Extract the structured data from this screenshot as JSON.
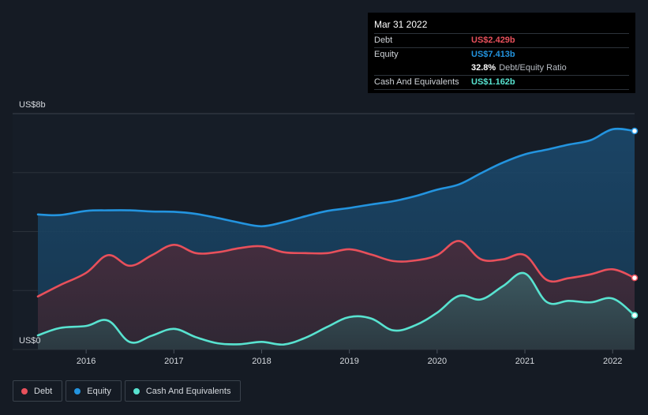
{
  "tooltip": {
    "date": "Mar 31 2022",
    "rows": [
      {
        "label": "Debt",
        "value": "US$2.429b",
        "color": "#e8505b"
      },
      {
        "label": "Equity",
        "value": "US$7.413b",
        "color": "#2394df"
      },
      {
        "label": "",
        "value": "32.8%",
        "suffix": "Debt/Equity Ratio",
        "color": "#ffffff"
      },
      {
        "label": "Cash And Equivalents",
        "value": "US$1.162b",
        "color": "#58e3d0"
      }
    ]
  },
  "chart_data": {
    "type": "area",
    "ylabel_top": "US$8b",
    "ylabel_bottom": "US$0",
    "ylim": [
      0,
      8
    ],
    "xlim": [
      2015.45,
      2022.25
    ],
    "grid": true,
    "x_ticks": [
      "2016",
      "2017",
      "2018",
      "2019",
      "2020",
      "2021",
      "2022"
    ],
    "x": [
      2015.45,
      2015.7,
      2016.0,
      2016.25,
      2016.5,
      2016.75,
      2017.0,
      2017.25,
      2017.5,
      2017.75,
      2018.0,
      2018.25,
      2018.5,
      2018.75,
      2019.0,
      2019.25,
      2019.5,
      2019.75,
      2020.0,
      2020.25,
      2020.5,
      2020.75,
      2021.0,
      2021.25,
      2021.5,
      2021.75,
      2022.0,
      2022.25
    ],
    "series": [
      {
        "name": "Equity",
        "color": "#2394df",
        "values": [
          4.58,
          4.56,
          4.7,
          4.72,
          4.72,
          4.68,
          4.67,
          4.6,
          4.46,
          4.3,
          4.18,
          4.32,
          4.52,
          4.7,
          4.8,
          4.92,
          5.03,
          5.2,
          5.42,
          5.6,
          5.98,
          6.34,
          6.62,
          6.78,
          6.95,
          7.1,
          7.47,
          7.41
        ]
      },
      {
        "name": "Debt",
        "color": "#e8505b",
        "values": [
          1.8,
          2.18,
          2.6,
          3.2,
          2.84,
          3.2,
          3.55,
          3.27,
          3.3,
          3.44,
          3.5,
          3.3,
          3.27,
          3.27,
          3.4,
          3.22,
          3.0,
          3.02,
          3.2,
          3.68,
          3.06,
          3.06,
          3.2,
          2.36,
          2.42,
          2.55,
          2.72,
          2.43
        ]
      },
      {
        "name": "Cash And Equivalents",
        "color": "#58e3d0",
        "values": [
          0.48,
          0.73,
          0.8,
          0.98,
          0.25,
          0.47,
          0.7,
          0.42,
          0.21,
          0.18,
          0.26,
          0.17,
          0.4,
          0.77,
          1.1,
          1.05,
          0.65,
          0.82,
          1.25,
          1.82,
          1.7,
          2.15,
          2.58,
          1.61,
          1.65,
          1.6,
          1.73,
          1.16
        ]
      }
    ]
  },
  "legend": [
    {
      "label": "Debt",
      "color": "#e8505b"
    },
    {
      "label": "Equity",
      "color": "#2394df"
    },
    {
      "label": "Cash And Equivalents",
      "color": "#58e3d0"
    }
  ]
}
